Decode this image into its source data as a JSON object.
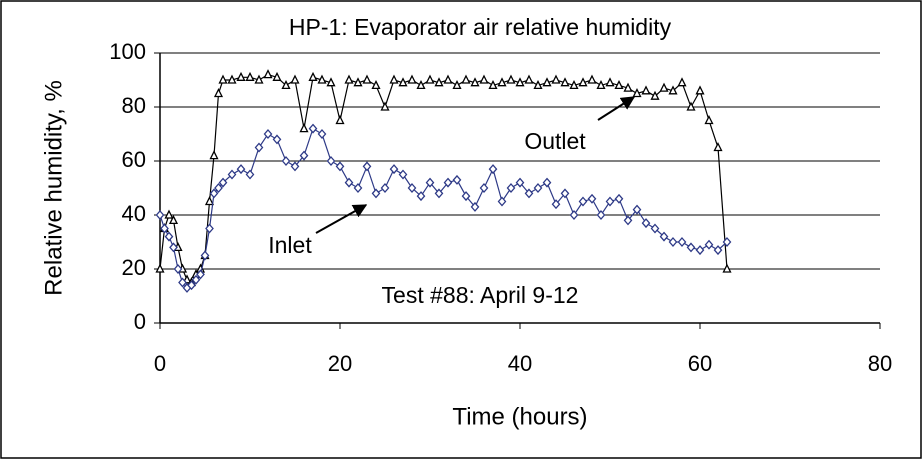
{
  "chart_data": {
    "type": "line",
    "title": "HP-1: Evaporator air relative humidity",
    "xlabel": "Time (hours)",
    "ylabel": "Relative humidity, %",
    "annotations": [
      "Outlet",
      "Inlet",
      "Test #88: April 9-12"
    ],
    "x": [
      0,
      0.5,
      1,
      1.5,
      2,
      2.5,
      3,
      3.5,
      4,
      4.5,
      5,
      5.5,
      6,
      6.5,
      7,
      8,
      9,
      10,
      11,
      12,
      13,
      14,
      15,
      16,
      17,
      18,
      19,
      20,
      21,
      22,
      23,
      24,
      25,
      26,
      27,
      28,
      29,
      30,
      31,
      32,
      33,
      34,
      35,
      36,
      37,
      38,
      39,
      40,
      41,
      42,
      43,
      44,
      45,
      46,
      47,
      48,
      49,
      50,
      51,
      52,
      53,
      54,
      55,
      56,
      57,
      58,
      59,
      60,
      61,
      62,
      63
    ],
    "series": [
      {
        "name": "Outlet",
        "color": "#000000",
        "marker": "triangle",
        "values": [
          20,
          35,
          40,
          38,
          28,
          20,
          16,
          15,
          18,
          20,
          25,
          45,
          62,
          85,
          90,
          90,
          91,
          91,
          90,
          92,
          91,
          88,
          90,
          72,
          91,
          90,
          89,
          75,
          90,
          89,
          90,
          88,
          80,
          90,
          89,
          90,
          88,
          90,
          89,
          90,
          88,
          90,
          89,
          90,
          88,
          89,
          90,
          89,
          90,
          88,
          89,
          90,
          89,
          88,
          89,
          90,
          88,
          89,
          88,
          87,
          85,
          86,
          84,
          87,
          86,
          89,
          80,
          86,
          75,
          65,
          20
        ]
      },
      {
        "name": "Inlet",
        "color": "#2e3a87",
        "marker": "diamond",
        "values": [
          40,
          35,
          32,
          28,
          20,
          15,
          13,
          14,
          16,
          18,
          25,
          35,
          48,
          50,
          52,
          55,
          57,
          55,
          65,
          70,
          68,
          60,
          58,
          62,
          72,
          70,
          60,
          58,
          52,
          50,
          58,
          48,
          50,
          57,
          55,
          50,
          47,
          52,
          48,
          52,
          53,
          47,
          43,
          50,
          57,
          45,
          50,
          52,
          48,
          50,
          52,
          44,
          48,
          40,
          45,
          46,
          40,
          45,
          46,
          38,
          42,
          37,
          35,
          32,
          30,
          30,
          28,
          27,
          29,
          27,
          30
        ]
      }
    ],
    "xlim": [
      0,
      80
    ],
    "xticks": [
      0,
      20,
      40,
      60,
      80
    ],
    "ylim": [
      0,
      100
    ],
    "yticks": [
      0,
      20,
      40,
      60,
      80,
      100
    ],
    "grid": true
  }
}
